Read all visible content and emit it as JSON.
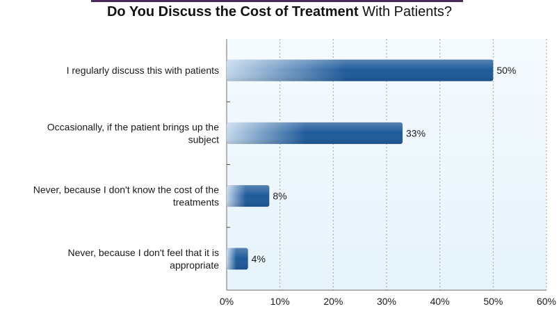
{
  "chart_data": {
    "type": "bar",
    "orientation": "horizontal",
    "title_bold": "Do You Discuss the Cost of Treatment",
    "title_rest": " With Patients?",
    "categories": [
      [
        "I regularly discuss this with patients"
      ],
      [
        "Occasionally, if the patient brings up the",
        "subject"
      ],
      [
        "Never, because I don't know the cost of the",
        "treatments"
      ],
      [
        "Never, because I don't feel that it is",
        "appropriate"
      ]
    ],
    "values": [
      50,
      33,
      8,
      4
    ],
    "value_labels": [
      "50%",
      "33%",
      "8%",
      "4%"
    ],
    "x_ticks": [
      0,
      10,
      20,
      30,
      40,
      50,
      60
    ],
    "x_tick_labels": [
      "0%",
      "10%",
      "20%",
      "30%",
      "40%",
      "50%",
      "60%"
    ],
    "xlim": [
      0,
      60
    ],
    "grid": "vertical dotted",
    "colors": {
      "bar_dark": "#1e5a9a",
      "bar_light": "#c3d8ec",
      "plot_bg_top": "#f5fbfe",
      "plot_bg_bottom": "#e6f3fb",
      "title_rule": "#4b2a5c"
    }
  }
}
